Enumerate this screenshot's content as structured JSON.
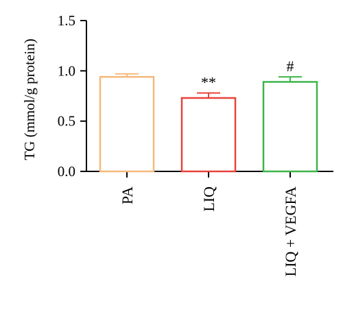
{
  "chart_data": {
    "type": "bar",
    "categories": [
      "PA",
      "LIQ",
      "LIQ + VEGFA"
    ],
    "values": [
      0.94,
      0.73,
      0.89
    ],
    "errors": [
      0.03,
      0.05,
      0.05
    ],
    "annotations": [
      "",
      "**",
      "#"
    ],
    "bar_colors": [
      "#f4b97c",
      "#e8423a",
      "#3cb54a"
    ],
    "ylabel": "TG (mmol/g protein)",
    "ylim": [
      0,
      1.5
    ],
    "yticks": [
      0.0,
      0.5,
      1.0,
      1.5
    ],
    "ytick_labels": [
      "0.0",
      "0.5",
      "1.0",
      "1.5"
    ],
    "grid": false,
    "legend": "none"
  }
}
